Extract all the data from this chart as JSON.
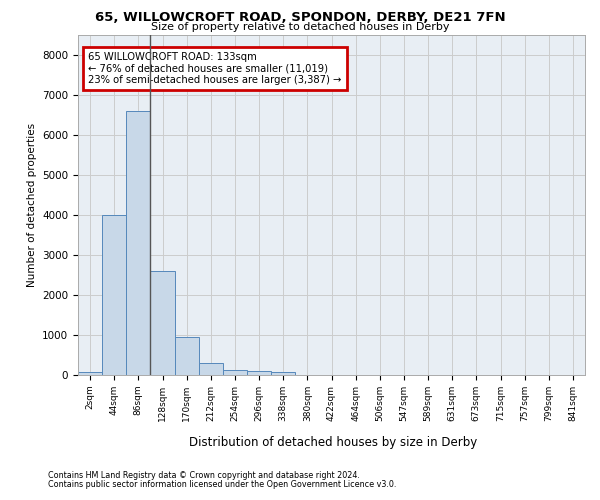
{
  "title1": "65, WILLOWCROFT ROAD, SPONDON, DERBY, DE21 7FN",
  "title2": "Size of property relative to detached houses in Derby",
  "xlabel": "Distribution of detached houses by size in Derby",
  "ylabel": "Number of detached properties",
  "footnote1": "Contains HM Land Registry data © Crown copyright and database right 2024.",
  "footnote2": "Contains public sector information licensed under the Open Government Licence v3.0.",
  "annotation_line1": "65 WILLOWCROFT ROAD: 133sqm",
  "annotation_line2": "← 76% of detached houses are smaller (11,019)",
  "annotation_line3": "23% of semi-detached houses are larger (3,387) →",
  "bar_labels": [
    "2sqm",
    "44sqm",
    "86sqm",
    "128sqm",
    "170sqm",
    "212sqm",
    "254sqm",
    "296sqm",
    "338sqm",
    "380sqm",
    "422sqm",
    "464sqm",
    "506sqm",
    "547sqm",
    "589sqm",
    "631sqm",
    "673sqm",
    "715sqm",
    "757sqm",
    "799sqm",
    "841sqm"
  ],
  "bar_values": [
    70,
    4000,
    6600,
    2600,
    950,
    300,
    120,
    100,
    80,
    0,
    0,
    0,
    0,
    0,
    0,
    0,
    0,
    0,
    0,
    0,
    0
  ],
  "bar_color": "#c8d8e8",
  "bar_edge_color": "#5588bb",
  "bar_width": 1.0,
  "ylim": [
    0,
    8500
  ],
  "yticks": [
    0,
    1000,
    2000,
    3000,
    4000,
    5000,
    6000,
    7000,
    8000
  ],
  "grid_color": "#cccccc",
  "bg_color": "#e8eef4",
  "annotation_box_color": "#cc0000",
  "property_line_color": "#555555"
}
